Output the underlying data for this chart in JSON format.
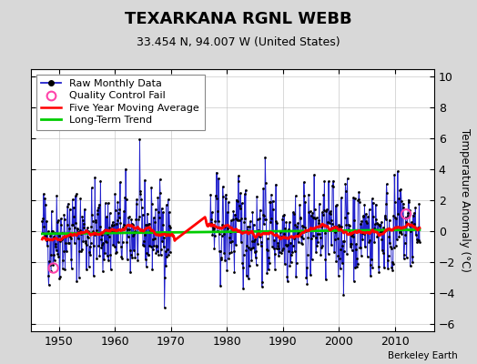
{
  "title": "TEXARKANA RGNL WEBB",
  "subtitle": "33.454 N, 94.007 W (United States)",
  "ylabel": "Temperature Anomaly (°C)",
  "credit": "Berkeley Earth",
  "xlim": [
    1945,
    2017
  ],
  "ylim": [
    -6.5,
    10.5
  ],
  "yticks": [
    -6,
    -4,
    -2,
    0,
    2,
    4,
    6,
    8,
    10
  ],
  "xticks": [
    1950,
    1960,
    1970,
    1980,
    1990,
    2000,
    2010
  ],
  "bg_color": "#d8d8d8",
  "plot_bg": "#ffffff",
  "grid_color": "#bbbbbb",
  "seed": 42,
  "n_months": 810,
  "start_year": 1947.0,
  "gap_start": 1970.0,
  "gap_end": 1977.0,
  "noise_std": 1.55,
  "ar_coef": 0.3,
  "lt_slope": 0.0035,
  "lt_intercept": -0.13,
  "ma_window": 60,
  "line_lw": 0.7,
  "dot_size": 4,
  "ma_lw": 2.0,
  "lt_lw": 2.0,
  "title_fs": 13,
  "subtitle_fs": 9,
  "tick_fs": 9,
  "legend_fs": 8,
  "ylabel_fs": 8.5
}
